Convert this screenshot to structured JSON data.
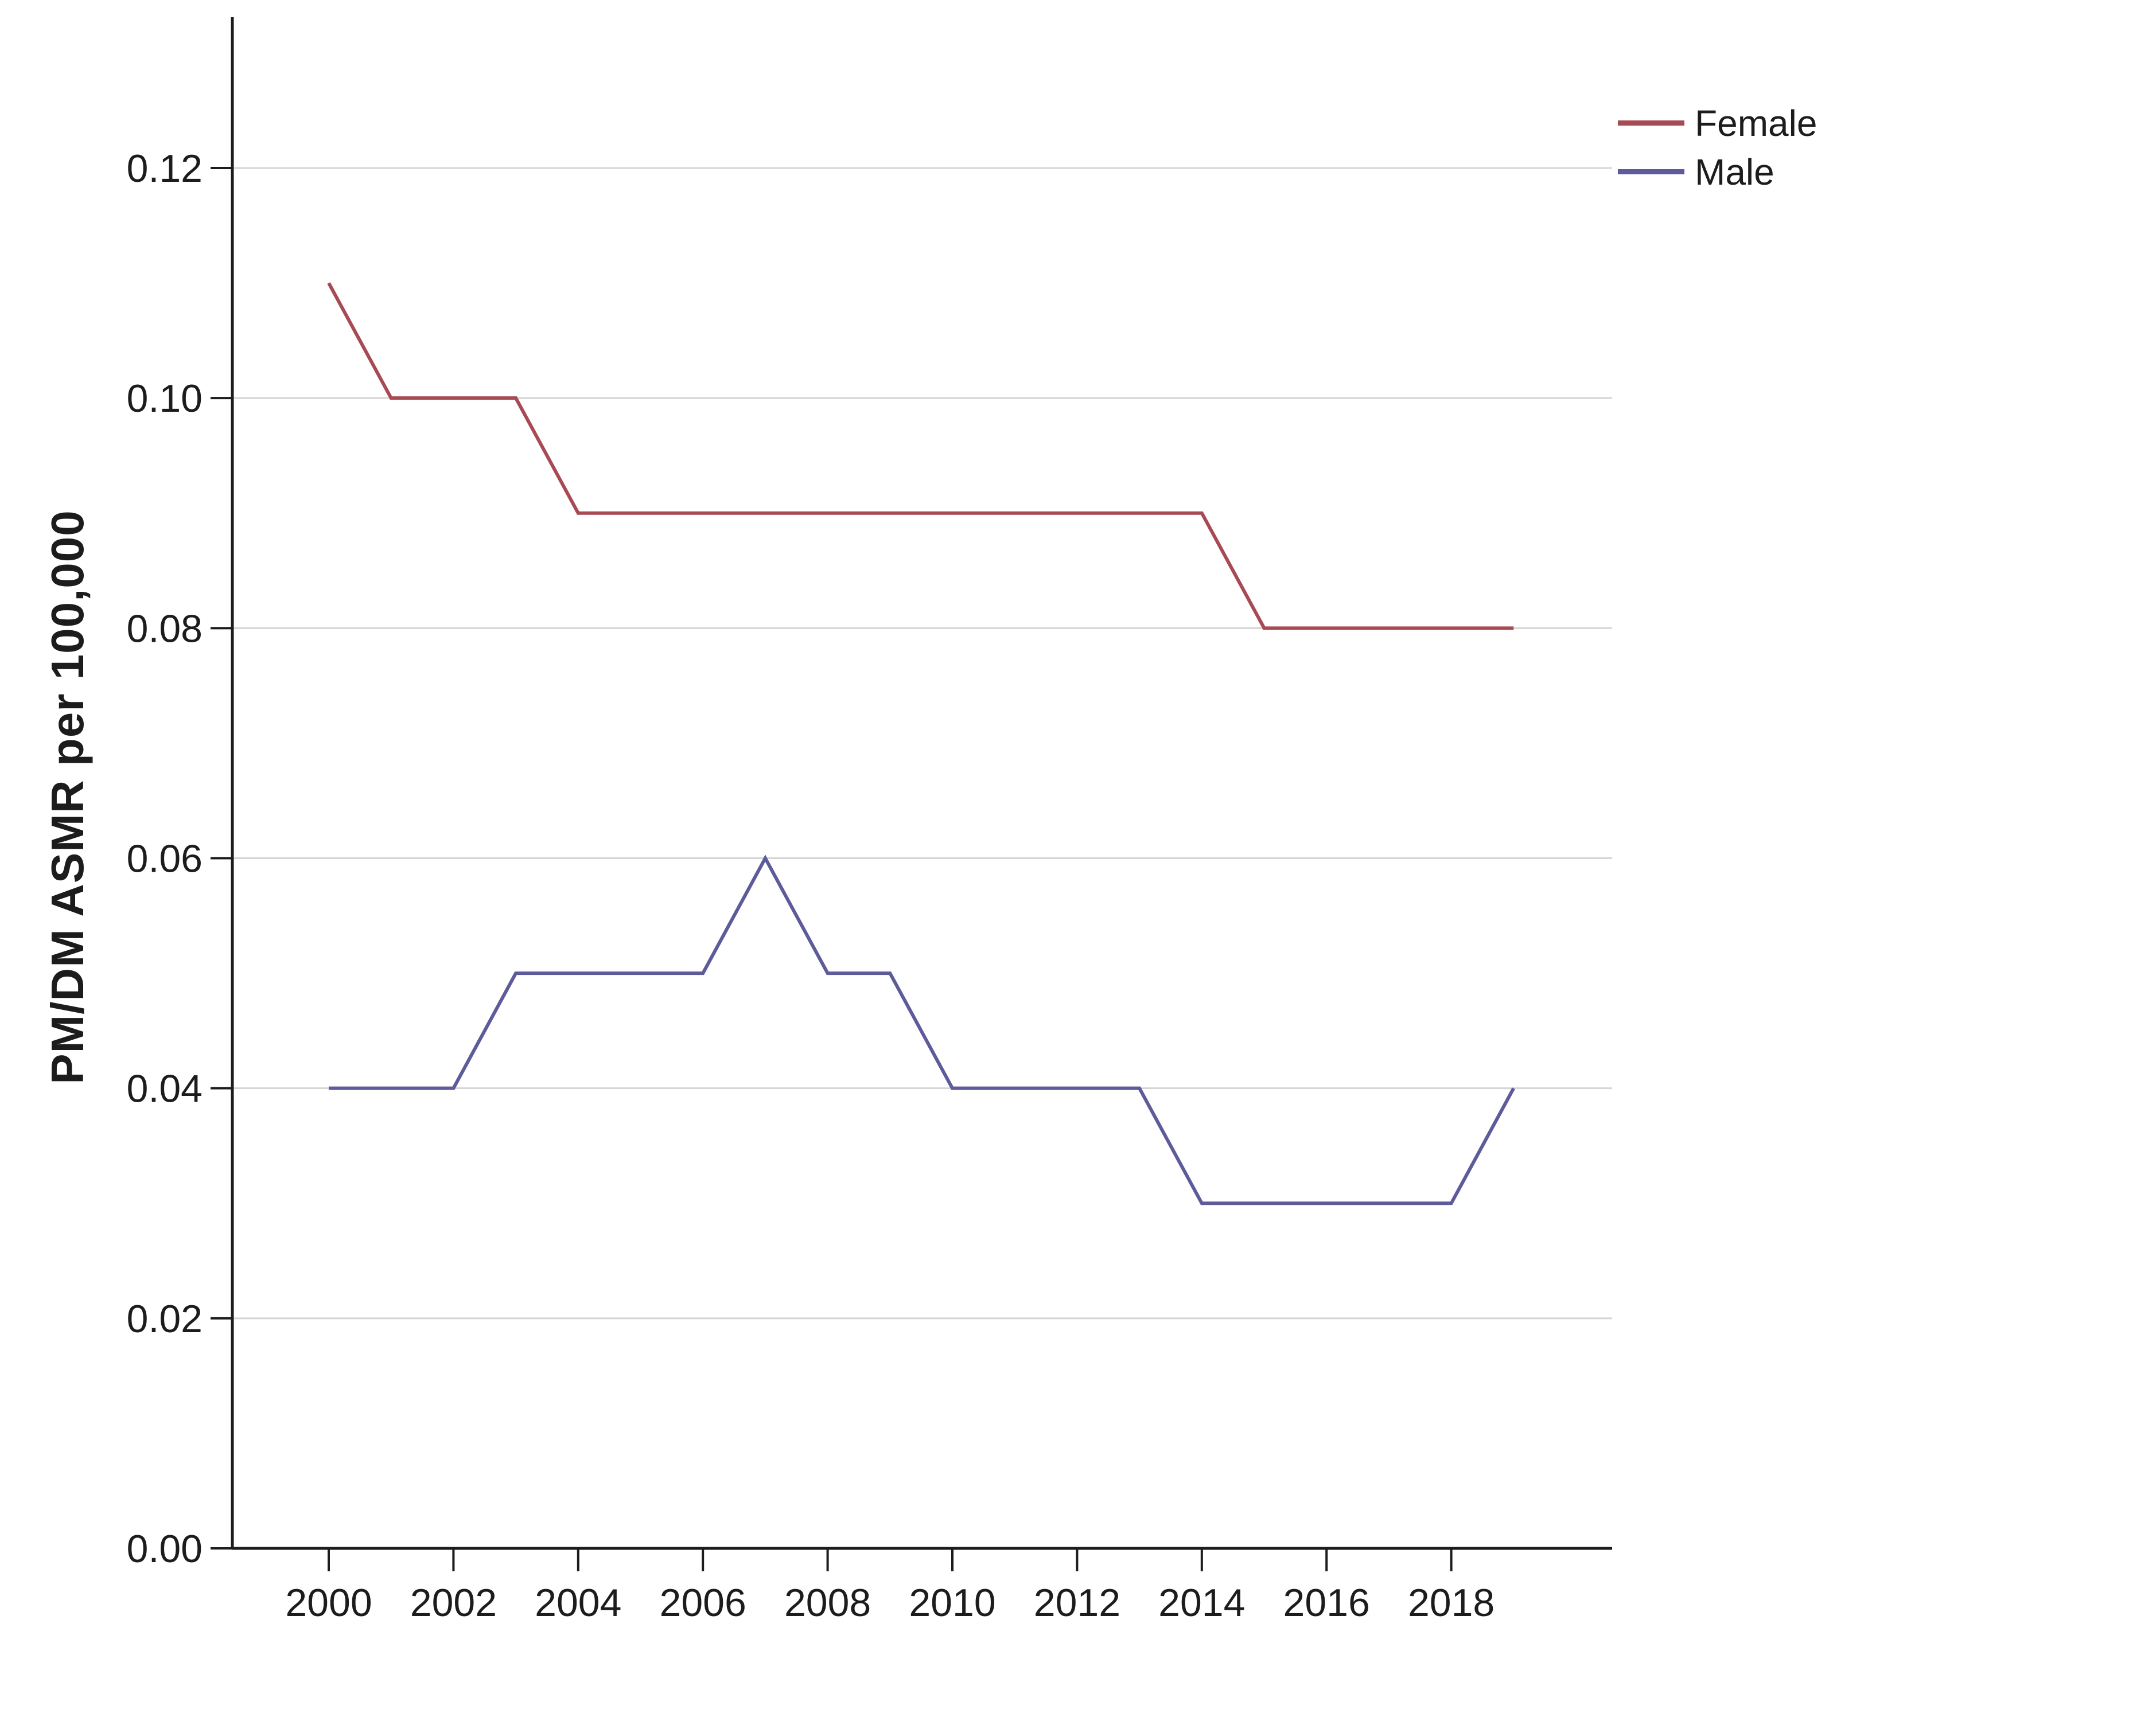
{
  "figure": {
    "background": "#ffffff"
  },
  "chart_data": {
    "type": "line",
    "title": "",
    "xlabel": "",
    "ylabel": "PM/DM ASMR per 100,000",
    "x": [
      2000,
      2001,
      2002,
      2003,
      2004,
      2005,
      2006,
      2007,
      2008,
      2009,
      2010,
      2011,
      2012,
      2013,
      2014,
      2015,
      2016,
      2017,
      2018,
      2019
    ],
    "series": [
      {
        "name": "Female",
        "color": "#a84a54",
        "values": [
          0.11,
          0.1,
          0.1,
          0.1,
          0.09,
          0.09,
          0.09,
          0.09,
          0.09,
          0.09,
          0.09,
          0.09,
          0.09,
          0.09,
          0.09,
          0.08,
          0.08,
          0.08,
          0.08,
          0.08
        ]
      },
      {
        "name": "Male",
        "color": "#5d5b99",
        "values": [
          0.04,
          0.04,
          0.04,
          0.05,
          0.05,
          0.05,
          0.05,
          0.06,
          0.05,
          0.05,
          0.04,
          0.04,
          0.04,
          0.04,
          0.03,
          0.03,
          0.03,
          0.03,
          0.03,
          0.04
        ]
      }
    ],
    "x_ticks": [
      2000,
      2002,
      2004,
      2006,
      2008,
      2010,
      2012,
      2014,
      2016,
      2018
    ],
    "x_tick_labels": [
      "2000",
      "2002",
      "2004",
      "2006",
      "2008",
      "2010",
      "2012",
      "2014",
      "2016",
      "2018"
    ],
    "y_ticks": [
      0.0,
      0.02,
      0.04,
      0.06,
      0.08,
      0.1,
      0.12
    ],
    "y_tick_labels": [
      "0.00",
      "0.02",
      "0.04",
      "0.06",
      "0.08",
      "0.10",
      "0.12"
    ],
    "ylim": [
      0.0,
      0.133
    ],
    "grid": "horizontal-only",
    "grid_color": "#d5d5d5",
    "axis_color": "#1c1c1c",
    "legend_position": "top-right"
  },
  "legend": {
    "items": [
      {
        "label": "Female",
        "color": "#a84a54"
      },
      {
        "label": "Male",
        "color": "#5d5b99"
      }
    ]
  }
}
